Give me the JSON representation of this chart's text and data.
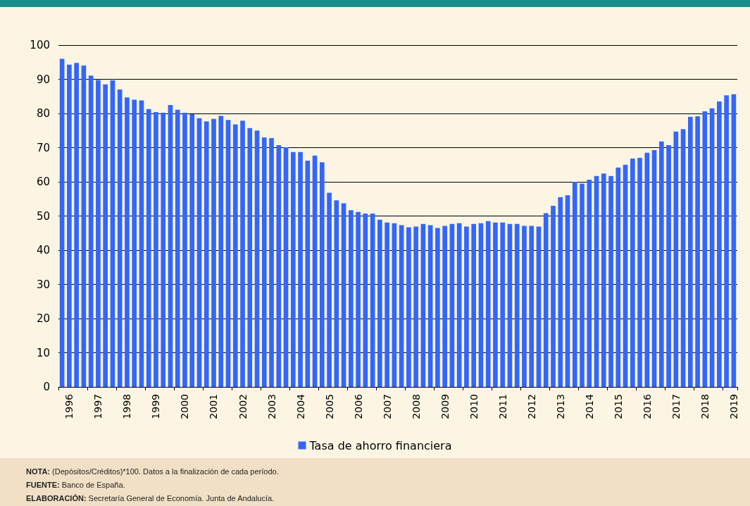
{
  "chart_data": {
    "type": "bar",
    "categories": [
      null,
      "1996",
      null,
      null,
      null,
      "1997",
      null,
      null,
      null,
      "1998",
      null,
      null,
      null,
      "1999",
      null,
      null,
      null,
      "2000",
      null,
      null,
      null,
      "2001",
      null,
      null,
      null,
      "2002",
      null,
      null,
      null,
      "2003",
      null,
      null,
      null,
      "2004",
      null,
      null,
      null,
      "2005",
      null,
      null,
      null,
      "2006",
      null,
      null,
      null,
      "2007",
      null,
      null,
      null,
      "2008",
      null,
      null,
      null,
      "2009",
      null,
      null,
      null,
      "2010",
      null,
      null,
      null,
      "2011",
      null,
      null,
      null,
      "2012",
      null,
      null,
      null,
      "2013",
      null,
      null,
      null,
      "2014",
      null,
      null,
      null,
      "2015",
      null,
      null,
      null,
      "2016",
      null,
      null,
      null,
      "2017",
      null,
      null,
      null,
      "2018",
      null,
      null,
      null,
      "2019"
    ],
    "series": [
      {
        "name": "Tasa de ahorro financiera",
        "color": "#3366ff",
        "values": [
          96.0,
          94.3,
          94.8,
          94.0,
          91.1,
          89.8,
          88.5,
          89.7,
          87.0,
          84.7,
          84.0,
          83.8,
          81.3,
          80.4,
          80.2,
          82.5,
          81.1,
          80.2,
          79.8,
          78.6,
          77.7,
          78.4,
          79.3,
          78.1,
          76.8,
          77.9,
          75.7,
          75.0,
          73.0,
          72.8,
          70.7,
          70.1,
          68.7,
          68.7,
          66.2,
          67.7,
          65.7,
          56.8,
          54.6,
          53.7,
          51.7,
          51.2,
          50.7,
          50.7,
          48.9,
          48.1,
          47.9,
          47.3,
          46.7,
          46.9,
          47.7,
          47.3,
          46.5,
          47.1,
          47.7,
          47.9,
          46.9,
          47.7,
          47.9,
          48.5,
          48.1,
          48.1,
          47.7,
          47.7,
          47.1,
          47.1,
          46.9,
          50.8,
          53.0,
          55.5,
          56.1,
          60.0,
          59.5,
          60.6,
          61.7,
          62.4,
          61.7,
          64.2,
          65.0,
          66.8,
          67.0,
          68.5,
          69.3,
          71.8,
          70.7,
          74.7,
          75.4,
          79.0,
          79.2,
          80.6,
          81.5,
          83.5,
          85.3,
          85.6
        ]
      }
    ],
    "ylim": [
      0,
      100
    ],
    "yticks": [
      0,
      10,
      20,
      30,
      40,
      50,
      60,
      70,
      80,
      90,
      100
    ],
    "grid": "y",
    "legend": "bottom",
    "annotations": [
      "NOTA: (Depósitos/Créditos)*100. Datos a la finalización de cada período.",
      "FUENTE: Banco de España.",
      "ELABORACIÓN: Secretaría General de Economía. Junta de Andalucía."
    ]
  }
}
